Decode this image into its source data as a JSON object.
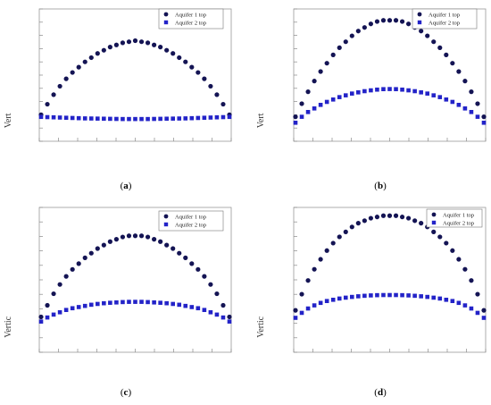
{
  "colors": {
    "series1": "#141454",
    "series2": "#2323c8",
    "axis": "#8a8a8a"
  },
  "chart_data": [
    {
      "type": "scatter",
      "caption": "(a)",
      "ylabel": "Vert",
      "xlim": [
        0,
        30
      ],
      "ylim": [
        0,
        10
      ],
      "legend_position": "top-right",
      "series": [
        {
          "name": "Aquifer 1 top",
          "marker": "circle",
          "x": [
            0,
            1,
            2,
            3,
            4,
            5,
            6,
            7,
            8,
            9,
            10,
            11,
            12,
            13,
            14,
            15,
            16,
            17,
            18,
            19,
            20,
            21,
            22,
            23,
            24,
            25,
            26,
            27,
            28,
            29,
            30
          ],
          "y": [
            1.5,
            2.5,
            3.4,
            4.2,
            4.9,
            5.5,
            6.0,
            6.5,
            6.9,
            7.3,
            7.6,
            7.9,
            8.1,
            8.3,
            8.4,
            8.5,
            8.4,
            8.3,
            8.1,
            7.9,
            7.6,
            7.3,
            6.9,
            6.5,
            6.0,
            5.5,
            4.9,
            4.2,
            3.4,
            2.5,
            1.5
          ]
        },
        {
          "name": "Aquifer 2 top",
          "marker": "square",
          "x": [
            0,
            1,
            2,
            3,
            4,
            5,
            6,
            7,
            8,
            9,
            10,
            11,
            12,
            13,
            14,
            15,
            16,
            17,
            18,
            19,
            20,
            21,
            22,
            23,
            24,
            25,
            26,
            27,
            28,
            29,
            30
          ],
          "y": [
            1.3,
            1.28,
            1.26,
            1.24,
            1.22,
            1.2,
            1.18,
            1.16,
            1.15,
            1.14,
            1.13,
            1.12,
            1.11,
            1.1,
            1.1,
            1.1,
            1.1,
            1.1,
            1.11,
            1.12,
            1.13,
            1.14,
            1.15,
            1.16,
            1.18,
            1.2,
            1.22,
            1.24,
            1.26,
            1.28,
            1.3
          ]
        }
      ]
    },
    {
      "type": "scatter",
      "caption": "(b)",
      "ylabel": "Vert",
      "xlim": [
        0,
        30
      ],
      "ylim": [
        0,
        10
      ],
      "legend_position": "top-right",
      "series": [
        {
          "name": "Aquifer 1 top",
          "marker": "circle",
          "x": [
            0,
            1,
            2,
            3,
            4,
            5,
            6,
            7,
            8,
            9,
            10,
            11,
            12,
            13,
            14,
            15,
            16,
            17,
            18,
            19,
            20,
            21,
            22,
            23,
            24,
            25,
            26,
            27,
            28,
            29,
            30
          ],
          "y": [
            1.5,
            2.6,
            3.6,
            4.5,
            5.3,
            6.0,
            6.7,
            7.3,
            7.8,
            8.3,
            8.7,
            9.0,
            9.3,
            9.5,
            9.6,
            9.6,
            9.6,
            9.5,
            9.3,
            9.0,
            8.7,
            8.3,
            7.8,
            7.3,
            6.7,
            6.0,
            5.3,
            4.5,
            3.6,
            2.6,
            1.5
          ]
        },
        {
          "name": "Aquifer 2 top",
          "marker": "square",
          "x": [
            0,
            1,
            2,
            3,
            4,
            5,
            6,
            7,
            8,
            9,
            10,
            11,
            12,
            13,
            14,
            15,
            16,
            17,
            18,
            19,
            20,
            21,
            22,
            23,
            24,
            25,
            26,
            27,
            28,
            29,
            30
          ],
          "y": [
            1.0,
            1.5,
            1.9,
            2.2,
            2.5,
            2.75,
            2.95,
            3.15,
            3.3,
            3.45,
            3.55,
            3.65,
            3.72,
            3.78,
            3.82,
            3.83,
            3.82,
            3.78,
            3.72,
            3.65,
            3.55,
            3.45,
            3.3,
            3.15,
            2.95,
            2.75,
            2.5,
            2.2,
            1.9,
            1.5,
            1.0
          ]
        }
      ]
    },
    {
      "type": "scatter",
      "caption": "(c)",
      "ylabel": "Vertic",
      "xlim": [
        0,
        30
      ],
      "ylim": [
        0,
        10
      ],
      "legend_position": "top-right",
      "series": [
        {
          "name": "Aquifer 1 top",
          "marker": "circle",
          "x": [
            0,
            1,
            2,
            3,
            4,
            5,
            6,
            7,
            8,
            9,
            10,
            11,
            12,
            13,
            14,
            15,
            16,
            17,
            18,
            19,
            20,
            21,
            22,
            23,
            24,
            25,
            26,
            27,
            28,
            29,
            30
          ],
          "y": [
            1.8,
            2.8,
            3.8,
            4.6,
            5.3,
            5.9,
            6.4,
            6.9,
            7.3,
            7.7,
            8.0,
            8.3,
            8.5,
            8.7,
            8.8,
            8.8,
            8.8,
            8.7,
            8.5,
            8.3,
            8.0,
            7.7,
            7.3,
            6.9,
            6.4,
            5.9,
            5.3,
            4.6,
            3.8,
            2.8,
            1.8
          ]
        },
        {
          "name": "Aquifer 2 top",
          "marker": "square",
          "x": [
            0,
            1,
            2,
            3,
            4,
            5,
            6,
            7,
            8,
            9,
            10,
            11,
            12,
            13,
            14,
            15,
            16,
            17,
            18,
            19,
            20,
            21,
            22,
            23,
            24,
            25,
            26,
            27,
            28,
            29,
            30
          ],
          "y": [
            1.4,
            1.75,
            2.0,
            2.2,
            2.4,
            2.55,
            2.65,
            2.75,
            2.85,
            2.92,
            2.98,
            3.02,
            3.05,
            3.08,
            3.1,
            3.1,
            3.1,
            3.08,
            3.05,
            3.02,
            2.98,
            2.92,
            2.85,
            2.75,
            2.65,
            2.55,
            2.4,
            2.2,
            2.0,
            1.75,
            1.4
          ]
        }
      ]
    },
    {
      "type": "scatter",
      "caption": "(d)",
      "ylabel": "Vertic",
      "xlim": [
        0,
        30
      ],
      "ylim": [
        0,
        10
      ],
      "legend_position": "top-right",
      "series": [
        {
          "name": "Aquifer 1 top",
          "marker": "circle",
          "x": [
            0,
            1,
            2,
            3,
            4,
            5,
            6,
            7,
            8,
            9,
            10,
            11,
            12,
            13,
            14,
            15,
            16,
            17,
            18,
            19,
            20,
            21,
            22,
            23,
            24,
            25,
            26,
            27,
            28,
            29,
            30
          ],
          "y": [
            2.2,
            3.5,
            4.6,
            5.5,
            6.3,
            7.0,
            7.6,
            8.1,
            8.5,
            8.9,
            9.2,
            9.4,
            9.6,
            9.7,
            9.8,
            9.8,
            9.8,
            9.7,
            9.6,
            9.4,
            9.2,
            8.9,
            8.5,
            8.1,
            7.6,
            7.0,
            6.3,
            5.5,
            4.6,
            3.5,
            2.2
          ]
        },
        {
          "name": "Aquifer 2 top",
          "marker": "square",
          "x": [
            0,
            1,
            2,
            3,
            4,
            5,
            6,
            7,
            8,
            9,
            10,
            11,
            12,
            13,
            14,
            15,
            16,
            17,
            18,
            19,
            20,
            21,
            22,
            23,
            24,
            25,
            26,
            27,
            28,
            29,
            30
          ],
          "y": [
            1.6,
            2.0,
            2.35,
            2.6,
            2.8,
            2.95,
            3.05,
            3.15,
            3.22,
            3.28,
            3.33,
            3.37,
            3.4,
            3.42,
            3.43,
            3.43,
            3.43,
            3.42,
            3.4,
            3.37,
            3.33,
            3.28,
            3.22,
            3.15,
            3.05,
            2.95,
            2.8,
            2.6,
            2.35,
            2.0,
            1.6
          ]
        }
      ]
    }
  ]
}
